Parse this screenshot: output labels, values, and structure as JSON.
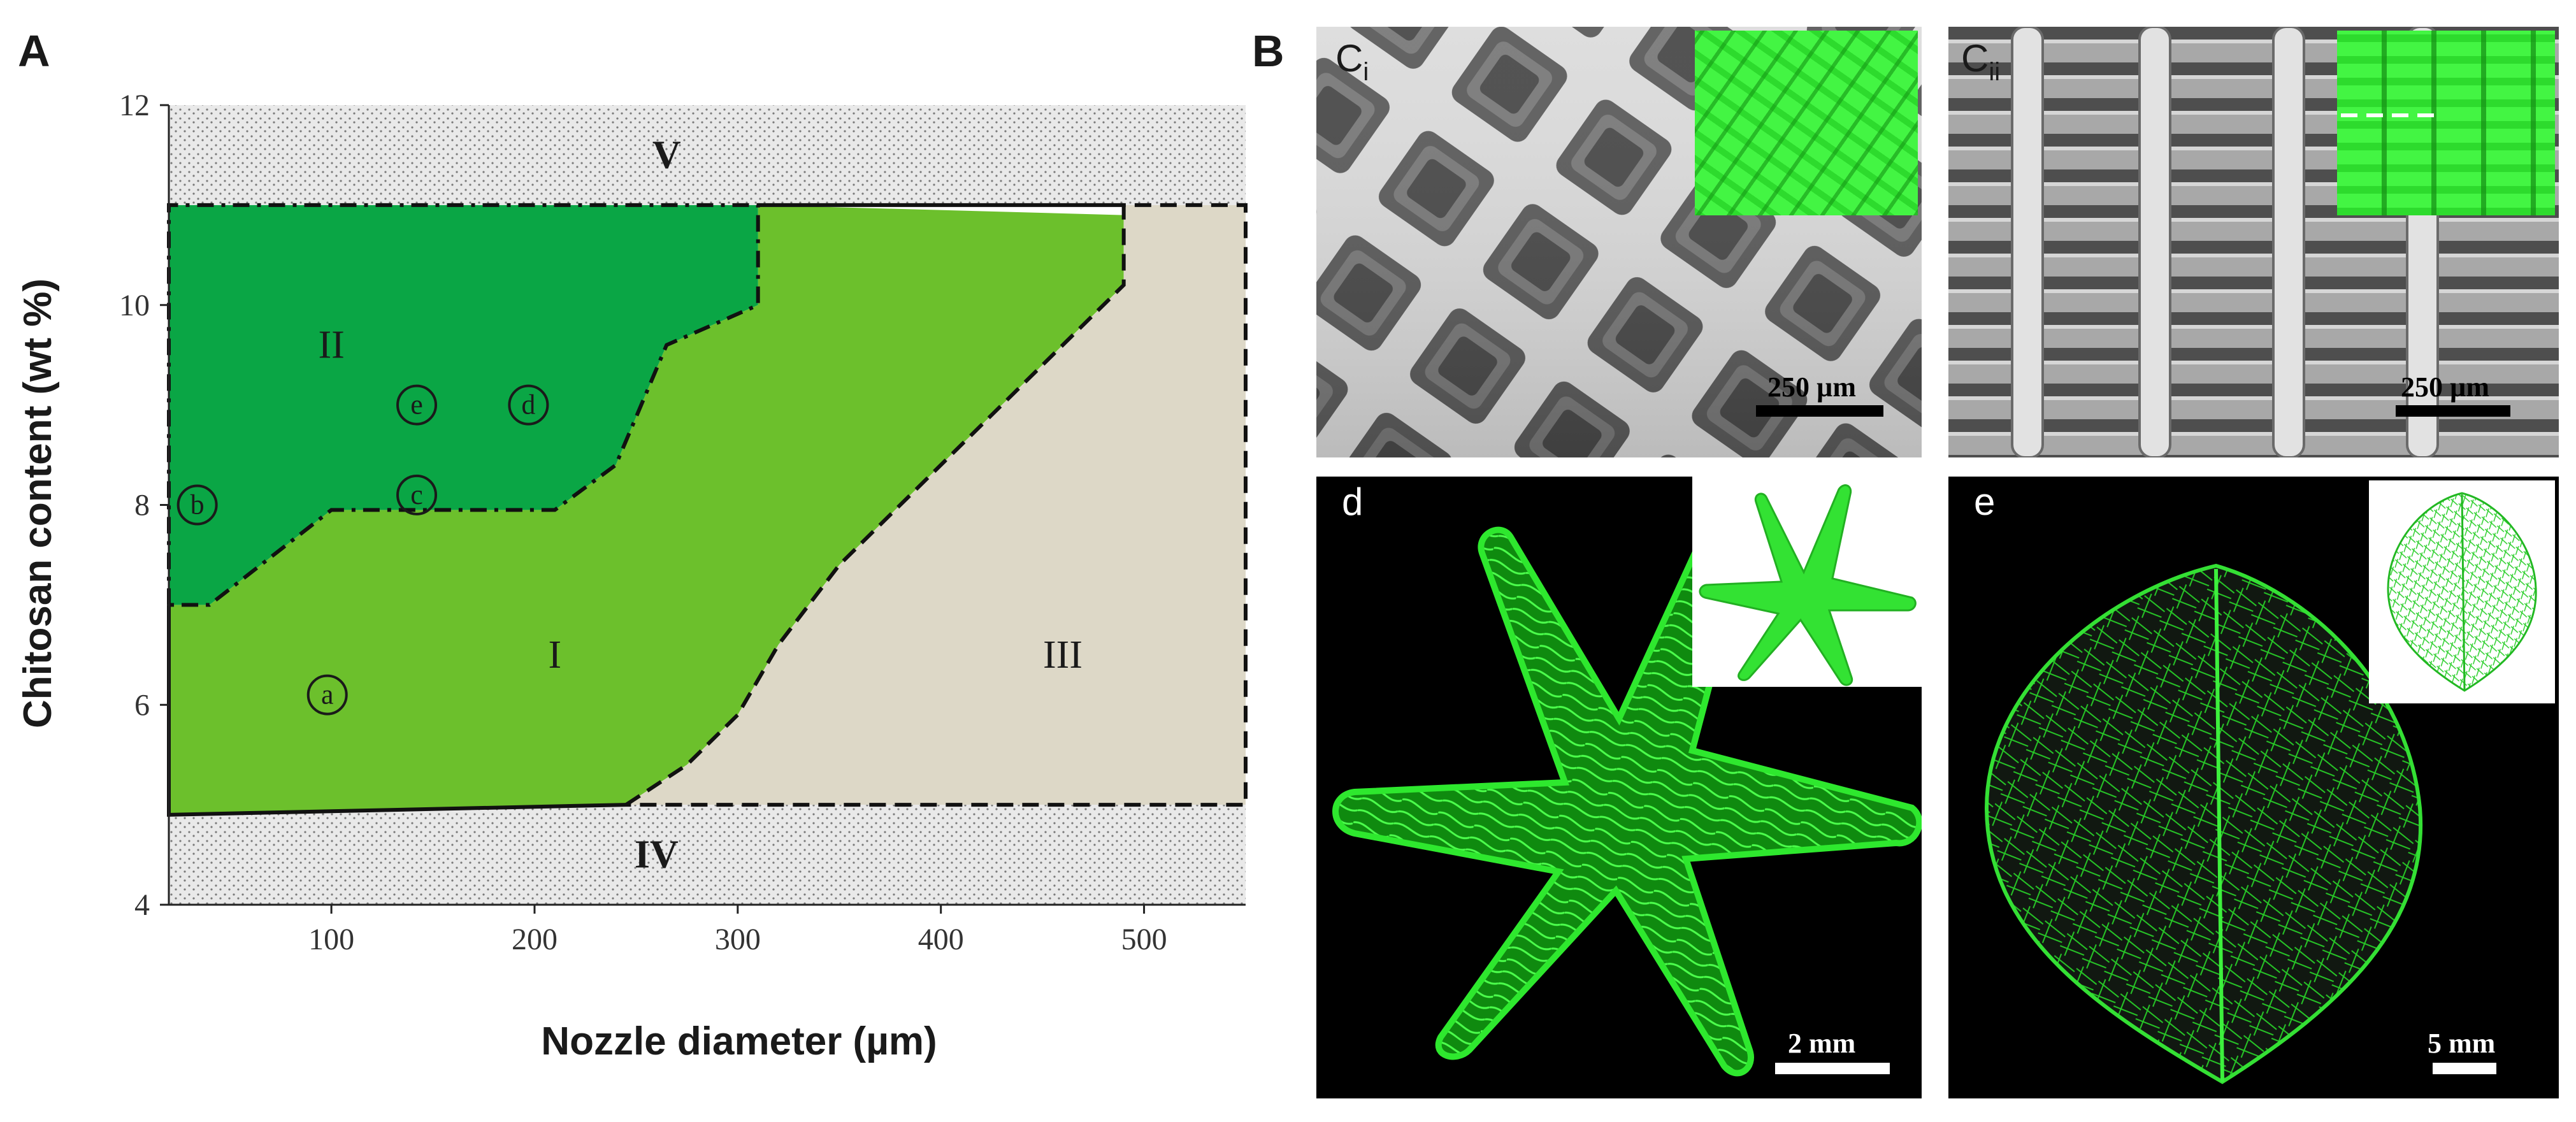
{
  "panel_a": {
    "letter": "A",
    "chart_data": {
      "type": "area",
      "xlabel": "Nozzle diameter (µm)",
      "ylabel": "Chitosan content (wt %)",
      "xlim": [
        20,
        550
      ],
      "ylim": [
        4,
        12
      ],
      "x_ticks": [
        "100",
        "200",
        "300",
        "400",
        "500"
      ],
      "y_ticks": [
        "4",
        "6",
        "8",
        "10",
        "12"
      ],
      "regions": [
        {
          "name": "I",
          "color": "#6cc02c",
          "points": [
            [
              20,
              4.9
            ],
            [
              245,
              5.0
            ],
            [
              275,
              5.4
            ],
            [
              300,
              5.9
            ],
            [
              320,
              6.6
            ],
            [
              350,
              7.4
            ],
            [
              420,
              8.8
            ],
            [
              490,
              10.2
            ],
            [
              490,
              10.9
            ],
            [
              310,
              11.0
            ],
            [
              310,
              10.0
            ],
            [
              265,
              9.6
            ],
            [
              240,
              8.4
            ],
            [
              210,
              7.95
            ],
            [
              100,
              7.95
            ],
            [
              40,
              7.0
            ],
            [
              20,
              7.0
            ]
          ]
        },
        {
          "name": "II",
          "color": "#0aa645",
          "points": [
            [
              20,
              11.0
            ],
            [
              310,
              11.0
            ],
            [
              310,
              10.0
            ],
            [
              265,
              9.6
            ],
            [
              240,
              8.4
            ],
            [
              210,
              7.95
            ],
            [
              100,
              7.95
            ],
            [
              40,
              7.0
            ],
            [
              20,
              7.0
            ]
          ]
        },
        {
          "name": "III",
          "color": "#ddd8c7",
          "points": [
            [
              245,
              5.0
            ],
            [
              550,
              5.0
            ],
            [
              550,
              11.0
            ],
            [
              490,
              11.0
            ],
            [
              490,
              10.2
            ],
            [
              420,
              8.8
            ],
            [
              350,
              7.4
            ],
            [
              320,
              6.6
            ],
            [
              300,
              5.9
            ],
            [
              275,
              5.4
            ]
          ]
        },
        {
          "name": "IV",
          "color": "#e9e9e9",
          "points": [
            [
              20,
              4.0
            ],
            [
              550,
              4.0
            ],
            [
              550,
              5.0
            ],
            [
              245,
              5.0
            ],
            [
              20,
              4.9
            ]
          ]
        },
        {
          "name": "V",
          "color": "#e9e9e9",
          "points": [
            [
              20,
              11.0
            ],
            [
              550,
              11.0
            ],
            [
              550,
              12.0
            ],
            [
              20,
              12.0
            ]
          ]
        }
      ],
      "region_labels": [
        {
          "text": "V",
          "x": 265,
          "y": 11.5
        },
        {
          "text": "II",
          "x": 100,
          "y": 9.6
        },
        {
          "text": "I",
          "x": 210,
          "y": 6.5
        },
        {
          "text": "III",
          "x": 460,
          "y": 6.5
        },
        {
          "text": "IV",
          "x": 260,
          "y": 4.5
        }
      ],
      "points": [
        {
          "label": "a",
          "x": 98,
          "y": 6.1
        },
        {
          "label": "b",
          "x": 34,
          "y": 8.0
        },
        {
          "label": "c",
          "x": 142,
          "y": 8.1
        },
        {
          "label": "d",
          "x": 197,
          "y": 9.0
        },
        {
          "label": "e",
          "x": 142,
          "y": 9.0
        }
      ]
    }
  },
  "panel_b": {
    "letter": "B",
    "ci": {
      "label_base": "C",
      "label_sub": "i",
      "scale": "250 µm"
    },
    "cii": {
      "label_base": "C",
      "label_sub": "ii",
      "scale": "250 µm"
    },
    "d": {
      "label": "d",
      "scale": "2 mm"
    },
    "e": {
      "label": "e",
      "scale": "5 mm"
    }
  },
  "colors": {
    "region_I": "#6cc02c",
    "region_II": "#0aa645",
    "region_III": "#ddd8c7",
    "stipple": "#e9e9e9",
    "fluor_green": "#2ee82e",
    "inset_green": "#39f239"
  }
}
